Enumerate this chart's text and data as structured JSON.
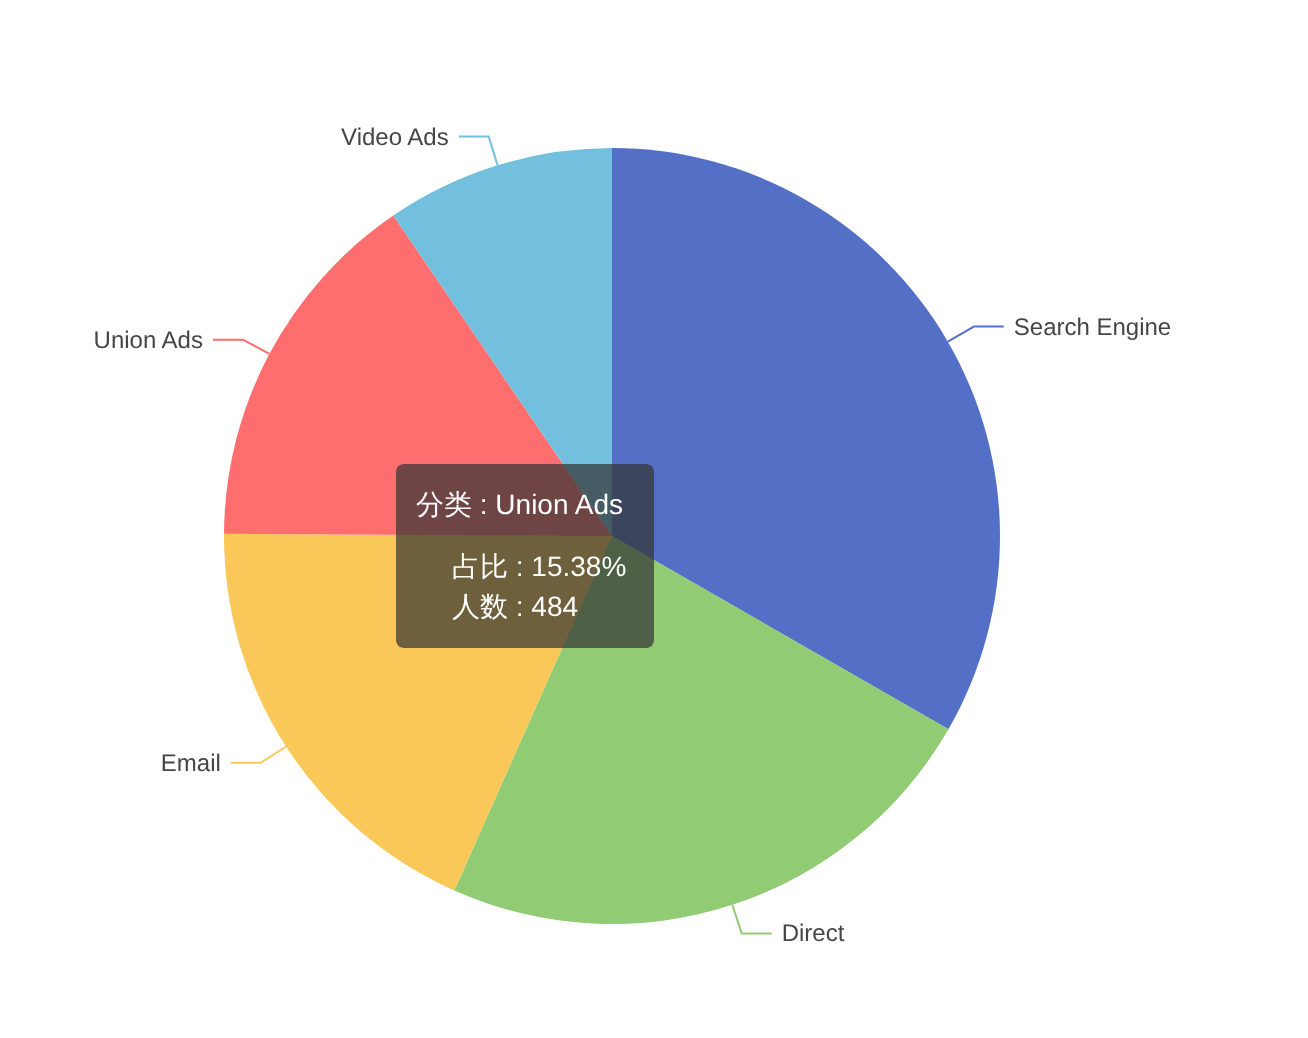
{
  "chart_data": {
    "type": "pie",
    "categories": [
      "Search Engine",
      "Direct",
      "Email",
      "Union Ads",
      "Video Ads"
    ],
    "values": [
      33.3,
      23.36,
      18.43,
      15.38,
      9.53
    ],
    "colors": [
      "#5470c6",
      "#91cc75",
      "#fac858",
      "#ff6e6e",
      "#73c0de"
    ],
    "annotations": [
      "分类 : Union Ads",
      "占比 : 15.38%",
      "人数 : 484"
    ]
  }
}
